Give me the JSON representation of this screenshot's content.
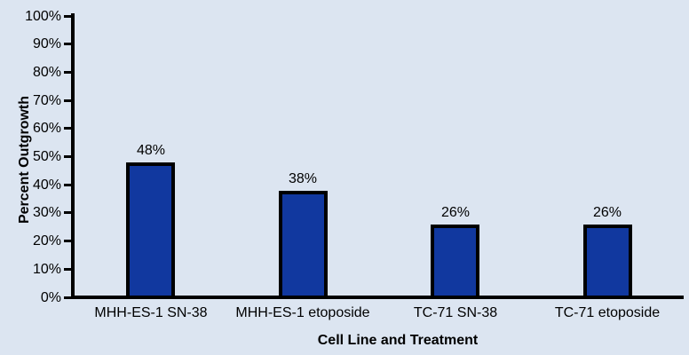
{
  "colors": {
    "background": "#dce5f1",
    "bar_fill": "#11389f",
    "bar_border": "#000000",
    "axis": "#000000",
    "text": "#000000"
  },
  "chart_data": {
    "type": "bar",
    "title": "",
    "xlabel": "Cell Line and Treatment",
    "ylabel": "Percent Outgrowth",
    "categories": [
      "MHH-ES-1 SN-38",
      "MHH-ES-1 etoposide",
      "TC-71 SN-38",
      "TC-71 etoposide"
    ],
    "values": [
      48,
      38,
      26,
      26
    ],
    "data_labels": [
      "48%",
      "38%",
      "26%",
      "26%"
    ],
    "ylim": [
      0,
      100
    ],
    "ytick_step": 10,
    "ytick_labels": [
      "0%",
      "10%",
      "20%",
      "30%",
      "40%",
      "50%",
      "60%",
      "70%",
      "80%",
      "90%",
      "100%"
    ],
    "grid": false,
    "legend": "none"
  }
}
